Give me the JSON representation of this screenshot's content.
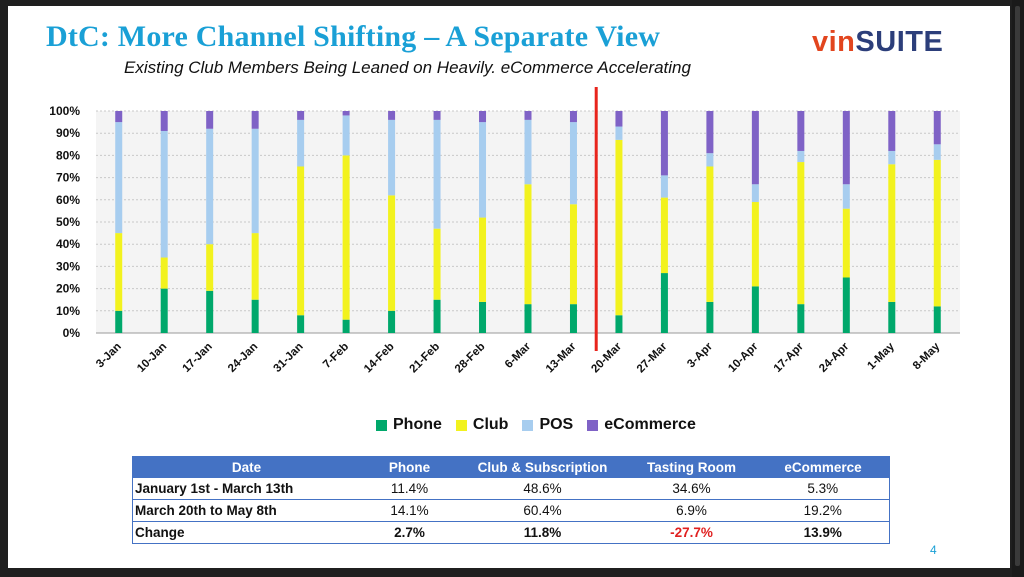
{
  "slide": {
    "title": "DtC: More Channel Shifting – A Separate View",
    "subtitle": "Existing Club Members Being Leaned on Heavily. eCommerce Accelerating",
    "logo_vin": "vin",
    "logo_suite": "SUITE",
    "page_number": "4"
  },
  "chart_data": {
    "type": "bar",
    "stacked": true,
    "categories": [
      "3-Jan",
      "10-Jan",
      "17-Jan",
      "24-Jan",
      "31-Jan",
      "7-Feb",
      "14-Feb",
      "21-Feb",
      "28-Feb",
      "6-Mar",
      "13-Mar",
      "20-Mar",
      "27-Mar",
      "3-Apr",
      "10-Apr",
      "17-Apr",
      "24-Apr",
      "1-May",
      "8-May"
    ],
    "y_ticks": [
      "0%",
      "10%",
      "20%",
      "30%",
      "40%",
      "50%",
      "60%",
      "70%",
      "80%",
      "90%",
      "100%"
    ],
    "ylim": [
      0,
      100
    ],
    "grid": true,
    "divider_after": "13-Mar",
    "legend_position": "bottom",
    "series": [
      {
        "name": "Phone",
        "color": "#00a86b",
        "values": [
          10,
          20,
          19,
          15,
          8,
          6,
          10,
          15,
          14,
          13,
          13,
          8,
          27,
          14,
          21,
          13,
          25,
          14,
          12
        ]
      },
      {
        "name": "Club",
        "color": "#f2f21e",
        "values": [
          35,
          14,
          21,
          30,
          67,
          74,
          52,
          32,
          38,
          54,
          45,
          79,
          34,
          61,
          38,
          64,
          31,
          62,
          66
        ]
      },
      {
        "name": "POS",
        "color": "#a7cdef",
        "values": [
          50,
          57,
          52,
          47,
          21,
          18,
          34,
          49,
          43,
          29,
          37,
          6,
          10,
          6,
          8,
          5,
          11,
          6,
          7
        ]
      },
      {
        "name": "eCommerce",
        "color": "#7f62c6",
        "values": [
          5,
          9,
          8,
          8,
          4,
          2,
          4,
          4,
          5,
          4,
          5,
          7,
          29,
          19,
          33,
          18,
          33,
          18,
          15
        ]
      }
    ]
  },
  "legend": {
    "items": [
      {
        "label": "Phone",
        "color": "#00a86b"
      },
      {
        "label": "Club",
        "color": "#f2f21e"
      },
      {
        "label": "POS",
        "color": "#a7cdef"
      },
      {
        "label": "eCommerce",
        "color": "#7f62c6"
      }
    ]
  },
  "table": {
    "headers": [
      "Date",
      "Phone",
      "Club & Subscription",
      "Tasting Room",
      "eCommerce"
    ],
    "rows": [
      {
        "label": "January 1st  -  March 13th",
        "phone": "11.4%",
        "club": "48.6%",
        "tasting": "34.6%",
        "ecom": "5.3%"
      },
      {
        "label": "March 20th to May 8th",
        "phone": "14.1%",
        "club": "60.4%",
        "tasting": "6.9%",
        "ecom": "19.2%"
      },
      {
        "label": "Change",
        "phone": "2.7%",
        "club": "11.8%",
        "tasting": "-27.7%",
        "ecom": "13.9%"
      }
    ]
  }
}
